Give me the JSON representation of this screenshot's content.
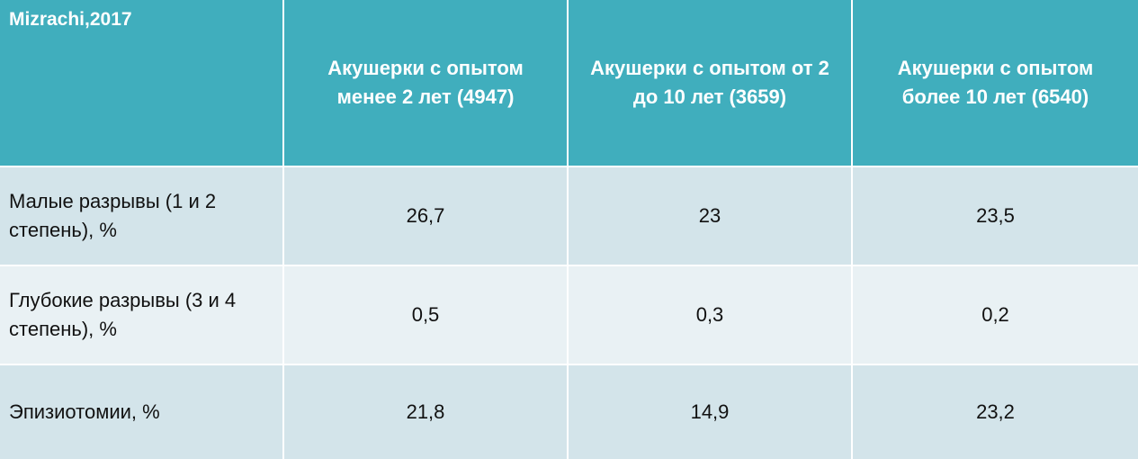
{
  "table": {
    "header": [
      "Mizrachi,2017",
      "Акушерки с опытом менее 2 лет (4947)",
      "Акушерки с опытом от 2 до 10 лет (3659)",
      "Акушерки с опытом более 10 лет (6540)"
    ],
    "rows": [
      [
        "Малые разрывы (1 и 2 степень), %",
        "26,7",
        "23",
        "23,5"
      ],
      [
        "Глубокие разрывы (3 и 4 степень), %",
        "0,5",
        "0,3",
        "0,2"
      ],
      [
        "Эпизиотомии, %",
        "21,8",
        "14,9",
        "23,2"
      ]
    ]
  }
}
